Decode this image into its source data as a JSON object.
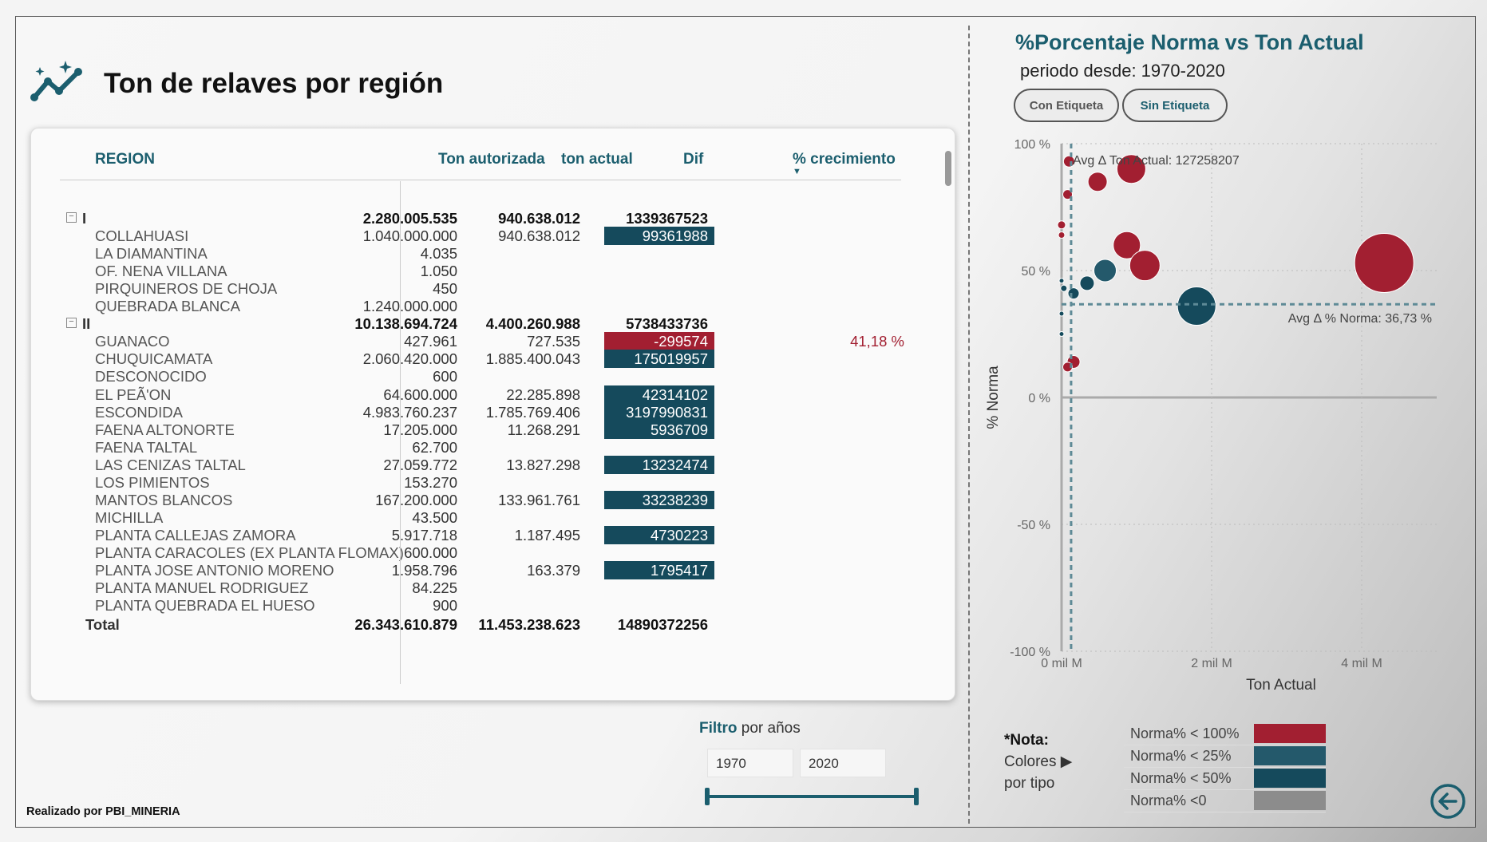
{
  "header": {
    "title": "Ton de relaves por región"
  },
  "table": {
    "headers": {
      "region": "REGION",
      "ton_autorizada": "Ton autorizada",
      "ton_actual": "ton actual",
      "dif": "Dif",
      "crecimiento": "% crecimiento"
    },
    "rows": [
      {
        "region": "I",
        "ton_autorizada": "2.280.005.535",
        "ton_actual": "940.638.012",
        "dif": "1339367523",
        "crecimiento": "",
        "level": "parent",
        "dif_style": "plain"
      },
      {
        "region": "COLLAHUASI",
        "ton_autorizada": "1.040.000.000",
        "ton_actual": "940.638.012",
        "dif": "99361988",
        "crecimiento": "",
        "level": "child",
        "dif_style": "pos"
      },
      {
        "region": "LA DIAMANTINA",
        "ton_autorizada": "4.035",
        "ton_actual": "",
        "dif": "",
        "crecimiento": "",
        "level": "child",
        "dif_style": ""
      },
      {
        "region": "OF. NENA VILLANA",
        "ton_autorizada": "1.050",
        "ton_actual": "",
        "dif": "",
        "crecimiento": "",
        "level": "child",
        "dif_style": ""
      },
      {
        "region": "PIRQUINEROS DE CHOJA",
        "ton_autorizada": "450",
        "ton_actual": "",
        "dif": "",
        "crecimiento": "",
        "level": "child",
        "dif_style": ""
      },
      {
        "region": "QUEBRADA BLANCA",
        "ton_autorizada": "1.240.000.000",
        "ton_actual": "",
        "dif": "",
        "crecimiento": "",
        "level": "child",
        "dif_style": ""
      },
      {
        "region": "II",
        "ton_autorizada": "10.138.694.724",
        "ton_actual": "4.400.260.988",
        "dif": "5738433736",
        "crecimiento": "",
        "level": "parent",
        "dif_style": "plain"
      },
      {
        "region": "GUANACO",
        "ton_autorizada": "427.961",
        "ton_actual": "727.535",
        "dif": "-299574",
        "crecimiento": "41,18 %",
        "level": "child",
        "dif_style": "neg"
      },
      {
        "region": "CHUQUICAMATA",
        "ton_autorizada": "2.060.420.000",
        "ton_actual": "1.885.400.043",
        "dif": "175019957",
        "crecimiento": "",
        "level": "child",
        "dif_style": "pos"
      },
      {
        "region": "DESCONOCIDO",
        "ton_autorizada": "600",
        "ton_actual": "",
        "dif": "",
        "crecimiento": "",
        "level": "child",
        "dif_style": ""
      },
      {
        "region": "EL PEÃ'ON",
        "ton_autorizada": "64.600.000",
        "ton_actual": "22.285.898",
        "dif": "42314102",
        "crecimiento": "",
        "level": "child",
        "dif_style": "pos"
      },
      {
        "region": "ESCONDIDA",
        "ton_autorizada": "4.983.760.237",
        "ton_actual": "1.785.769.406",
        "dif": "3197990831",
        "crecimiento": "",
        "level": "child",
        "dif_style": "pos"
      },
      {
        "region": "FAENA ALTONORTE",
        "ton_autorizada": "17.205.000",
        "ton_actual": "11.268.291",
        "dif": "5936709",
        "crecimiento": "",
        "level": "child",
        "dif_style": "pos"
      },
      {
        "region": "FAENA TALTAL",
        "ton_autorizada": "62.700",
        "ton_actual": "",
        "dif": "",
        "crecimiento": "",
        "level": "child",
        "dif_style": ""
      },
      {
        "region": "LAS CENIZAS TALTAL",
        "ton_autorizada": "27.059.772",
        "ton_actual": "13.827.298",
        "dif": "13232474",
        "crecimiento": "",
        "level": "child",
        "dif_style": "pos"
      },
      {
        "region": "LOS PIMIENTOS",
        "ton_autorizada": "153.270",
        "ton_actual": "",
        "dif": "",
        "crecimiento": "",
        "level": "child",
        "dif_style": ""
      },
      {
        "region": "MANTOS BLANCOS",
        "ton_autorizada": "167.200.000",
        "ton_actual": "133.961.761",
        "dif": "33238239",
        "crecimiento": "",
        "level": "child",
        "dif_style": "pos"
      },
      {
        "region": "MICHILLA",
        "ton_autorizada": "43.500",
        "ton_actual": "",
        "dif": "",
        "crecimiento": "",
        "level": "child",
        "dif_style": ""
      },
      {
        "region": "PLANTA CALLEJAS ZAMORA",
        "ton_autorizada": "5.917.718",
        "ton_actual": "1.187.495",
        "dif": "4730223",
        "crecimiento": "",
        "level": "child",
        "dif_style": "pos"
      },
      {
        "region": "PLANTA CARACOLES (EX PLANTA FLOMAX)",
        "ton_autorizada": "600.000",
        "ton_actual": "",
        "dif": "",
        "crecimiento": "",
        "level": "child",
        "dif_style": ""
      },
      {
        "region": "PLANTA JOSE ANTONIO MORENO",
        "ton_autorizada": "1.958.796",
        "ton_actual": "163.379",
        "dif": "1795417",
        "crecimiento": "",
        "level": "child",
        "dif_style": "pos"
      },
      {
        "region": "PLANTA MANUEL RODRIGUEZ",
        "ton_autorizada": "84.225",
        "ton_actual": "",
        "dif": "",
        "crecimiento": "",
        "level": "child",
        "dif_style": ""
      },
      {
        "region": "PLANTA QUEBRADA EL HUESO",
        "ton_autorizada": "900",
        "ton_actual": "",
        "dif": "",
        "crecimiento": "",
        "level": "child",
        "dif_style": ""
      }
    ],
    "total": {
      "label": "Total",
      "ton_autorizada": "26.343.610.879",
      "ton_actual": "11.453.238.623",
      "dif": "14890372256"
    }
  },
  "filter": {
    "label_bold": "Filtro",
    "label_rest": " por años",
    "from": "1970",
    "to": "2020",
    "range": [
      1970,
      2020
    ]
  },
  "credit": "Realizado por PBI_MINERIA",
  "chart": {
    "title": "%Porcentaje Norma vs Ton Actual",
    "subtitle": "periodo desde: 1970-2020",
    "buttons": [
      "Con Etiqueta",
      "Sin Etiqueta"
    ]
  },
  "chart_data": {
    "type": "scatter",
    "xlabel": "Ton Actual",
    "ylabel": "% Norma",
    "x_unit": "mil M",
    "xlim": [
      0,
      5
    ],
    "ylim": [
      -100,
      100
    ],
    "x_ticks": [
      0,
      2,
      4
    ],
    "x_tick_labels": [
      "0 mil M",
      "2 mil M",
      "4 mil M"
    ],
    "y_ticks": [
      100,
      50,
      0,
      -50,
      -100
    ],
    "y_tick_labels": [
      "100 %",
      "50 %",
      "0 %",
      "-50 %",
      "-100 %"
    ],
    "avg_x_label": "Avg Δ Ton Actual: 127258207",
    "avg_x": 0.127,
    "avg_y_label": "Avg Δ % Norma: 36,73 %",
    "avg_y": 36.73,
    "points": [
      {
        "x": 0.1,
        "y": 93,
        "size": 7,
        "cls": "red"
      },
      {
        "x": 0.08,
        "y": 80,
        "size": 6,
        "cls": "red"
      },
      {
        "x": 0.0,
        "y": 68,
        "size": 5,
        "cls": "red"
      },
      {
        "x": 0.0,
        "y": 64,
        "size": 4,
        "cls": "red"
      },
      {
        "x": 0.48,
        "y": 85,
        "size": 12,
        "cls": "red"
      },
      {
        "x": 0.93,
        "y": 90,
        "size": 18,
        "cls": "red"
      },
      {
        "x": 0.87,
        "y": 60,
        "size": 17,
        "cls": "red"
      },
      {
        "x": 1.11,
        "y": 52,
        "size": 19,
        "cls": "red"
      },
      {
        "x": 4.3,
        "y": 53,
        "size": 37,
        "cls": "red"
      },
      {
        "x": 0.58,
        "y": 50,
        "size": 14,
        "cls": "teal"
      },
      {
        "x": 0.34,
        "y": 45,
        "size": 9,
        "cls": "dark"
      },
      {
        "x": 0.16,
        "y": 41,
        "size": 7,
        "cls": "dark"
      },
      {
        "x": 0.03,
        "y": 43,
        "size": 4,
        "cls": "dark"
      },
      {
        "x": 0.0,
        "y": 46,
        "size": 3,
        "cls": "dark"
      },
      {
        "x": 0.0,
        "y": 33,
        "size": 3,
        "cls": "dark"
      },
      {
        "x": 0.0,
        "y": 25,
        "size": 3,
        "cls": "dark"
      },
      {
        "x": 1.8,
        "y": 36,
        "size": 24,
        "cls": "dark"
      },
      {
        "x": 0.16,
        "y": 14,
        "size": 8,
        "cls": "red"
      },
      {
        "x": 0.08,
        "y": 12,
        "size": 6,
        "cls": "red"
      }
    ],
    "colors": {
      "red": "#a21f31",
      "teal": "#24596b",
      "dark": "#154a5c",
      "grey": "#8c8c8c"
    }
  },
  "legend": {
    "note_bold": "*Nota:",
    "note_line2": "Colores ▶",
    "note_line3": "por tipo",
    "items": [
      {
        "label": "Norma% < 100%",
        "color": "#a21f31"
      },
      {
        "label": "Norma% < 25%",
        "color": "#24596b"
      },
      {
        "label": "Norma% < 50%",
        "color": "#154a5c"
      },
      {
        "label": "Norma% <0",
        "color": "#8c8c8c"
      }
    ]
  }
}
